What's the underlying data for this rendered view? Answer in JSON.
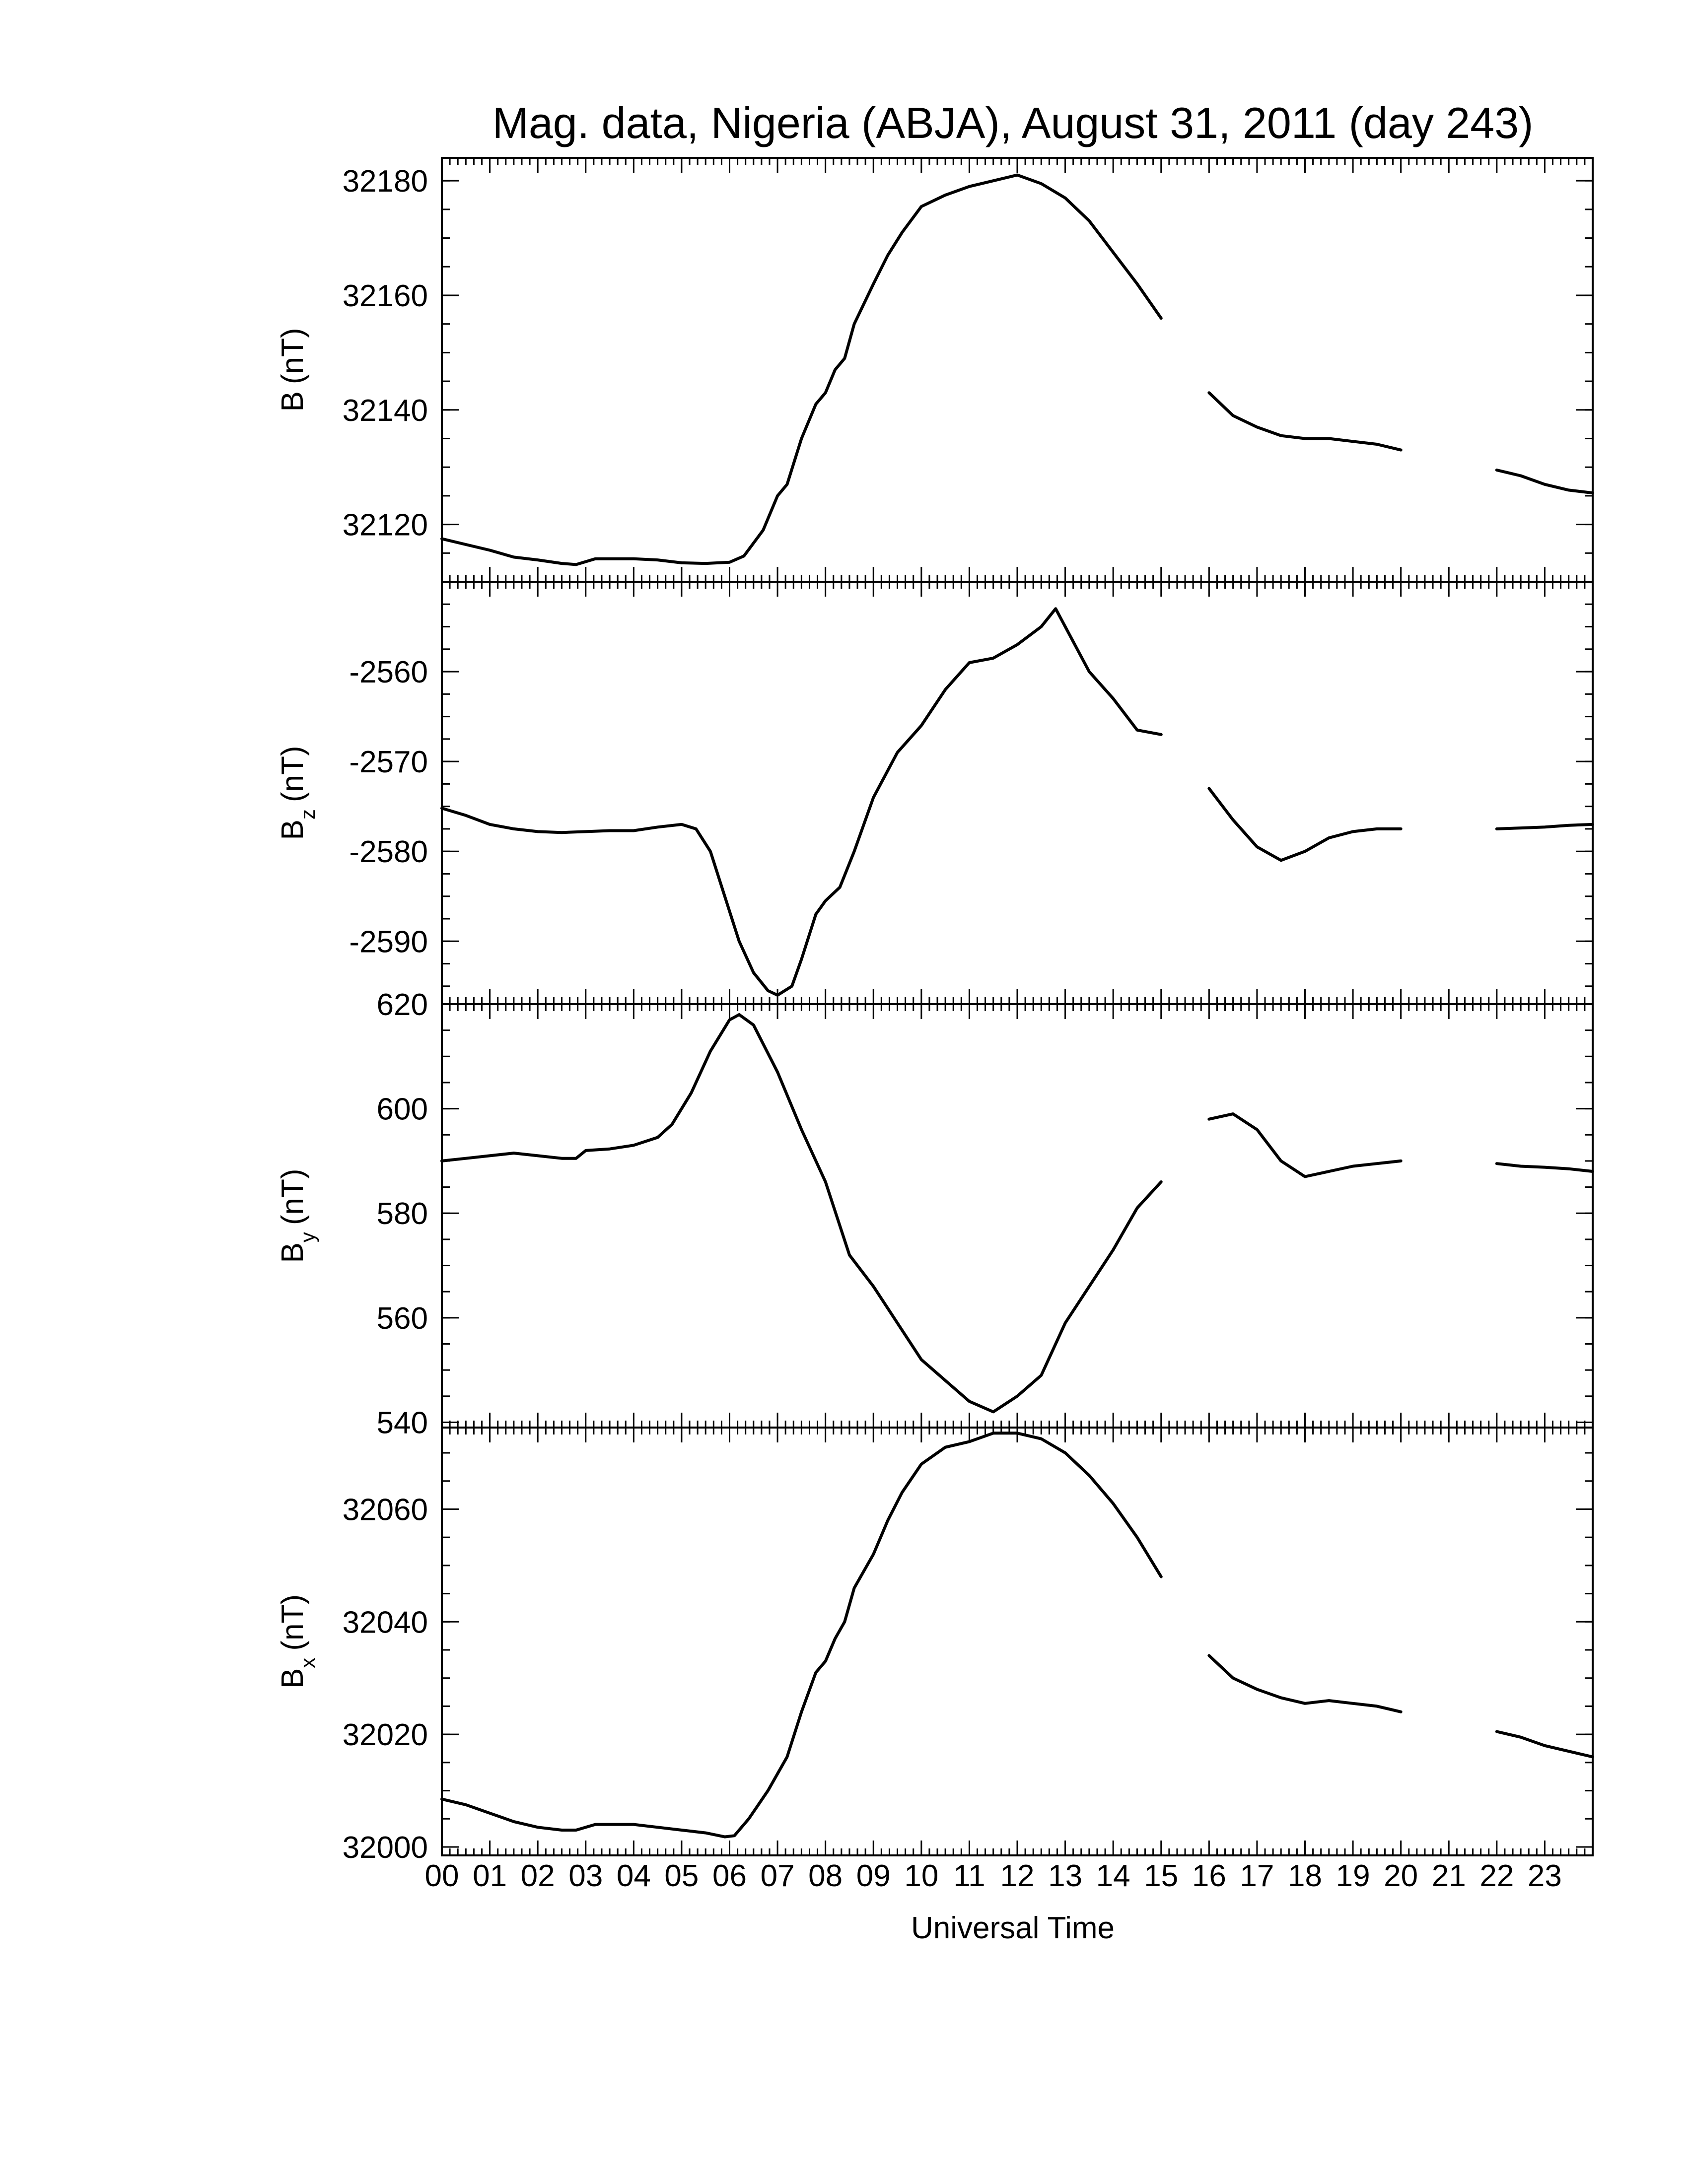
{
  "chart_data": {
    "type": "line",
    "title": "Mag. data, Nigeria (ABJA), August 31, 2011 (day 243)",
    "xlabel": "Universal Time",
    "x_unit": "hours UT",
    "xlim": [
      0,
      24
    ],
    "x_tick_labels": [
      "00",
      "01",
      "02",
      "03",
      "04",
      "05",
      "06",
      "07",
      "08",
      "09",
      "10",
      "11",
      "12",
      "13",
      "14",
      "15",
      "16",
      "17",
      "18",
      "19",
      "20",
      "21",
      "22",
      "23"
    ],
    "data_gaps_hours": [
      [
        15.0,
        16.0
      ],
      [
        20.0,
        22.0
      ]
    ],
    "panels": [
      {
        "name": "B",
        "ylabel_main": "B",
        "ylabel_sub": "",
        "ylabel_unit": "(nT)",
        "ylim": [
          32110,
          32184
        ],
        "yticks": [
          32120,
          32140,
          32160,
          32180
        ],
        "series": [
          {
            "values": [
              [
                0,
                32117.5
              ],
              [
                0.5,
                32116.5
              ],
              [
                1,
                32115.5
              ],
              [
                1.5,
                32114.3
              ],
              [
                2,
                32113.8
              ],
              [
                2.5,
                32113.2
              ],
              [
                2.8,
                32113
              ],
              [
                3.2,
                32114
              ],
              [
                4,
                32114
              ],
              [
                4.5,
                32113.8
              ],
              [
                5,
                32113.3
              ],
              [
                5.5,
                32113.2
              ],
              [
                6.0,
                32113.4
              ],
              [
                6.3,
                32114.5
              ],
              [
                6.7,
                32119
              ],
              [
                7.0,
                32125
              ],
              [
                7.2,
                32127
              ],
              [
                7.5,
                32135
              ],
              [
                7.8,
                32141
              ],
              [
                8.0,
                32143
              ],
              [
                8.2,
                32147
              ],
              [
                8.4,
                32149
              ],
              [
                8.6,
                32155
              ],
              [
                9.0,
                32162
              ],
              [
                9.3,
                32167
              ],
              [
                9.6,
                32171
              ],
              [
                10,
                32175.5
              ],
              [
                10.5,
                32177.5
              ],
              [
                11,
                32179
              ],
              [
                11.5,
                32180
              ],
              [
                12,
                32181
              ],
              [
                12.5,
                32179.5
              ],
              [
                13,
                32177
              ],
              [
                13.5,
                32173
              ],
              [
                14,
                32167.5
              ],
              [
                14.5,
                32162
              ],
              [
                15.0,
                32156
              ]
            ]
          },
          {
            "values": [
              [
                16.0,
                32143
              ],
              [
                16.5,
                32139
              ],
              [
                17,
                32137
              ],
              [
                17.5,
                32135.5
              ],
              [
                18,
                32135
              ],
              [
                18.5,
                32135
              ],
              [
                19,
                32134.5
              ],
              [
                19.5,
                32134
              ],
              [
                20.0,
                32133
              ]
            ]
          },
          {
            "values": [
              [
                22.0,
                32129.5
              ],
              [
                22.5,
                32128.5
              ],
              [
                23,
                32127
              ],
              [
                23.5,
                32126
              ],
              [
                24,
                32125.5
              ]
            ]
          }
        ]
      },
      {
        "name": "Bz",
        "ylabel_main": "B",
        "ylabel_sub": "z",
        "ylabel_unit": "(nT)",
        "ylim": [
          -2597,
          -2550
        ],
        "yticks": [
          -2560,
          -2570,
          -2580,
          -2590
        ],
        "series": [
          {
            "values": [
              [
                0,
                -2575.2
              ],
              [
                0.5,
                -2576
              ],
              [
                1,
                -2577
              ],
              [
                1.5,
                -2577.5
              ],
              [
                2,
                -2577.8
              ],
              [
                2.5,
                -2577.9
              ],
              [
                3,
                -2577.8
              ],
              [
                3.5,
                -2577.7
              ],
              [
                4,
                -2577.7
              ],
              [
                4.5,
                -2577.3
              ],
              [
                5,
                -2577
              ],
              [
                5.3,
                -2577.5
              ],
              [
                5.6,
                -2580
              ],
              [
                5.9,
                -2585
              ],
              [
                6.2,
                -2590
              ],
              [
                6.5,
                -2593.5
              ],
              [
                6.8,
                -2595.5
              ],
              [
                7.0,
                -2596
              ],
              [
                7.3,
                -2595
              ],
              [
                7.5,
                -2592
              ],
              [
                7.8,
                -2587
              ],
              [
                8.0,
                -2585.5
              ],
              [
                8.3,
                -2584
              ],
              [
                8.6,
                -2580
              ],
              [
                9.0,
                -2574
              ],
              [
                9.5,
                -2569
              ],
              [
                10,
                -2566
              ],
              [
                10.5,
                -2562
              ],
              [
                11,
                -2559
              ],
              [
                11.5,
                -2558.5
              ],
              [
                12,
                -2557
              ],
              [
                12.5,
                -2555
              ],
              [
                12.8,
                -2553
              ],
              [
                13.0,
                -2555
              ],
              [
                13.5,
                -2560
              ],
              [
                14,
                -2563
              ],
              [
                14.5,
                -2566.5
              ],
              [
                15.0,
                -2567
              ]
            ]
          },
          {
            "values": [
              [
                16.0,
                -2573
              ],
              [
                16.5,
                -2576.5
              ],
              [
                17,
                -2579.5
              ],
              [
                17.5,
                -2581
              ],
              [
                18,
                -2580
              ],
              [
                18.5,
                -2578.5
              ],
              [
                19,
                -2577.8
              ],
              [
                19.5,
                -2577.5
              ],
              [
                20.0,
                -2577.5
              ]
            ]
          },
          {
            "values": [
              [
                22.0,
                -2577.5
              ],
              [
                22.5,
                -2577.4
              ],
              [
                23,
                -2577.3
              ],
              [
                23.5,
                -2577.1
              ],
              [
                24,
                -2577
              ]
            ]
          }
        ]
      },
      {
        "name": "By",
        "ylabel_main": "B",
        "ylabel_sub": "y",
        "ylabel_unit": "(nT)",
        "ylim": [
          539,
          620
        ],
        "yticks": [
          540,
          560,
          580,
          600,
          620
        ],
        "series": [
          {
            "values": [
              [
                0,
                590
              ],
              [
                0.5,
                590.5
              ],
              [
                1,
                591
              ],
              [
                1.5,
                591.5
              ],
              [
                2,
                591
              ],
              [
                2.5,
                590.5
              ],
              [
                2.8,
                590.5
              ],
              [
                3.0,
                592
              ],
              [
                3.5,
                592.3
              ],
              [
                4,
                593
              ],
              [
                4.5,
                594.5
              ],
              [
                4.8,
                597
              ],
              [
                5.2,
                603
              ],
              [
                5.6,
                611
              ],
              [
                6.0,
                617
              ],
              [
                6.2,
                618
              ],
              [
                6.5,
                616
              ],
              [
                7.0,
                607
              ],
              [
                7.5,
                596
              ],
              [
                8.0,
                586
              ],
              [
                8.5,
                572
              ],
              [
                9.0,
                566
              ],
              [
                9.5,
                559
              ],
              [
                10,
                552
              ],
              [
                10.5,
                548
              ],
              [
                11,
                544
              ],
              [
                11.5,
                542
              ],
              [
                12,
                545
              ],
              [
                12.5,
                549
              ],
              [
                13,
                559
              ],
              [
                13.5,
                566
              ],
              [
                14,
                573
              ],
              [
                14.5,
                581
              ],
              [
                15.0,
                586
              ]
            ]
          },
          {
            "values": [
              [
                16.0,
                598
              ],
              [
                16.5,
                599
              ],
              [
                17,
                596
              ],
              [
                17.5,
                590
              ],
              [
                18,
                587
              ],
              [
                18.5,
                588
              ],
              [
                19,
                589
              ],
              [
                19.5,
                589.5
              ],
              [
                20.0,
                590
              ]
            ]
          },
          {
            "values": [
              [
                22.0,
                589.5
              ],
              [
                22.5,
                589
              ],
              [
                23,
                588.8
              ],
              [
                23.5,
                588.5
              ],
              [
                24,
                588
              ]
            ]
          }
        ]
      },
      {
        "name": "Bx",
        "ylabel_main": "B",
        "ylabel_sub": "x",
        "ylabel_unit": "(nT)",
        "ylim": [
          31998.5,
          32074.5
        ],
        "yticks": [
          32000,
          32020,
          32040,
          32060
        ],
        "series": [
          {
            "values": [
              [
                0,
                32008.5
              ],
              [
                0.5,
                32007.5
              ],
              [
                1,
                32006
              ],
              [
                1.5,
                32004.5
              ],
              [
                2,
                32003.5
              ],
              [
                2.5,
                32003
              ],
              [
                2.8,
                32003
              ],
              [
                3.2,
                32004
              ],
              [
                4,
                32004
              ],
              [
                4.5,
                32003.5
              ],
              [
                5,
                32003
              ],
              [
                5.5,
                32002.5
              ],
              [
                5.9,
                32001.8
              ],
              [
                6.1,
                32002
              ],
              [
                6.4,
                32005
              ],
              [
                6.8,
                32010
              ],
              [
                7.0,
                32013
              ],
              [
                7.2,
                32016
              ],
              [
                7.5,
                32024
              ],
              [
                7.8,
                32031
              ],
              [
                8.0,
                32033
              ],
              [
                8.2,
                32037
              ],
              [
                8.4,
                32040
              ],
              [
                8.6,
                32046
              ],
              [
                9.0,
                32052
              ],
              [
                9.3,
                32058
              ],
              [
                9.6,
                32063
              ],
              [
                10,
                32068
              ],
              [
                10.5,
                32071
              ],
              [
                11,
                32072
              ],
              [
                11.5,
                32073.5
              ],
              [
                12,
                32073.5
              ],
              [
                12.5,
                32072.5
              ],
              [
                13,
                32070
              ],
              [
                13.5,
                32066
              ],
              [
                14,
                32061
              ],
              [
                14.5,
                32055
              ],
              [
                15.0,
                32048
              ]
            ]
          },
          {
            "values": [
              [
                16.0,
                32034
              ],
              [
                16.5,
                32030
              ],
              [
                17,
                32028
              ],
              [
                17.5,
                32026.5
              ],
              [
                18,
                32025.5
              ],
              [
                18.5,
                32026
              ],
              [
                19,
                32025.5
              ],
              [
                19.5,
                32025
              ],
              [
                20.0,
                32024
              ]
            ]
          },
          {
            "values": [
              [
                22.0,
                32020.5
              ],
              [
                22.5,
                32019.5
              ],
              [
                23,
                32018
              ],
              [
                23.5,
                32017
              ],
              [
                24,
                32016
              ]
            ]
          }
        ]
      }
    ]
  }
}
